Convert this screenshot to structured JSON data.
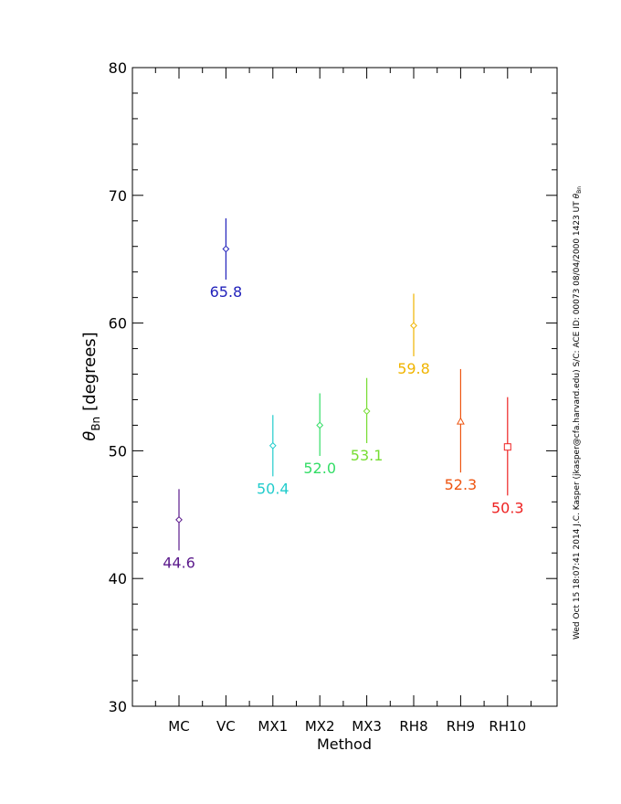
{
  "chart_data": {
    "type": "scatter",
    "xlabel": "Method",
    "ylabel_symbol": "θ",
    "ylabel_subscript": "Bn",
    "ylabel_units": "[degrees]",
    "ylim": [
      30,
      80
    ],
    "y_major_ticks": [
      30,
      40,
      50,
      60,
      70,
      80
    ],
    "y_minor_step": 2,
    "categories": [
      "MC",
      "VC",
      "MX1",
      "MX2",
      "MX3",
      "RH8",
      "RH9",
      "RH10"
    ],
    "points": [
      {
        "category": "MC",
        "value": 44.6,
        "low": 42.2,
        "high": 47.0,
        "label": "44.6",
        "marker": "diamond",
        "color": "#5b1a8c"
      },
      {
        "category": "VC",
        "value": 65.8,
        "low": 63.4,
        "high": 68.2,
        "label": "65.8",
        "marker": "diamond",
        "color": "#2222bb"
      },
      {
        "category": "MX1",
        "value": 50.4,
        "low": 48.0,
        "high": 52.8,
        "label": "50.4",
        "marker": "diamond",
        "color": "#22cccc"
      },
      {
        "category": "MX2",
        "value": 52.0,
        "low": 49.6,
        "high": 54.5,
        "label": "52.0",
        "marker": "diamond",
        "color": "#33dd66"
      },
      {
        "category": "MX3",
        "value": 53.1,
        "low": 50.6,
        "high": 55.7,
        "label": "53.1",
        "marker": "diamond",
        "color": "#77dd33"
      },
      {
        "category": "RH8",
        "value": 59.8,
        "low": 57.4,
        "high": 62.3,
        "label": "59.8",
        "marker": "diamond",
        "color": "#f0b400"
      },
      {
        "category": "RH9",
        "value": 52.3,
        "low": 48.3,
        "high": 56.4,
        "label": "52.3",
        "marker": "triangle",
        "color": "#ee5511"
      },
      {
        "category": "RH10",
        "value": 50.3,
        "low": 46.5,
        "high": 54.2,
        "label": "50.3",
        "marker": "square",
        "color": "#ee2222"
      }
    ],
    "side_annotation_main": "Wed Oct 15 18:07:41 2014   J.C. Kasper (jkasper@cfa.harvard.edu)   S/C: ACE ID: 00073 08/04/2000   1423 UT ",
    "side_annotation_symbol": "θ",
    "side_annotation_subscript": "Bn"
  }
}
